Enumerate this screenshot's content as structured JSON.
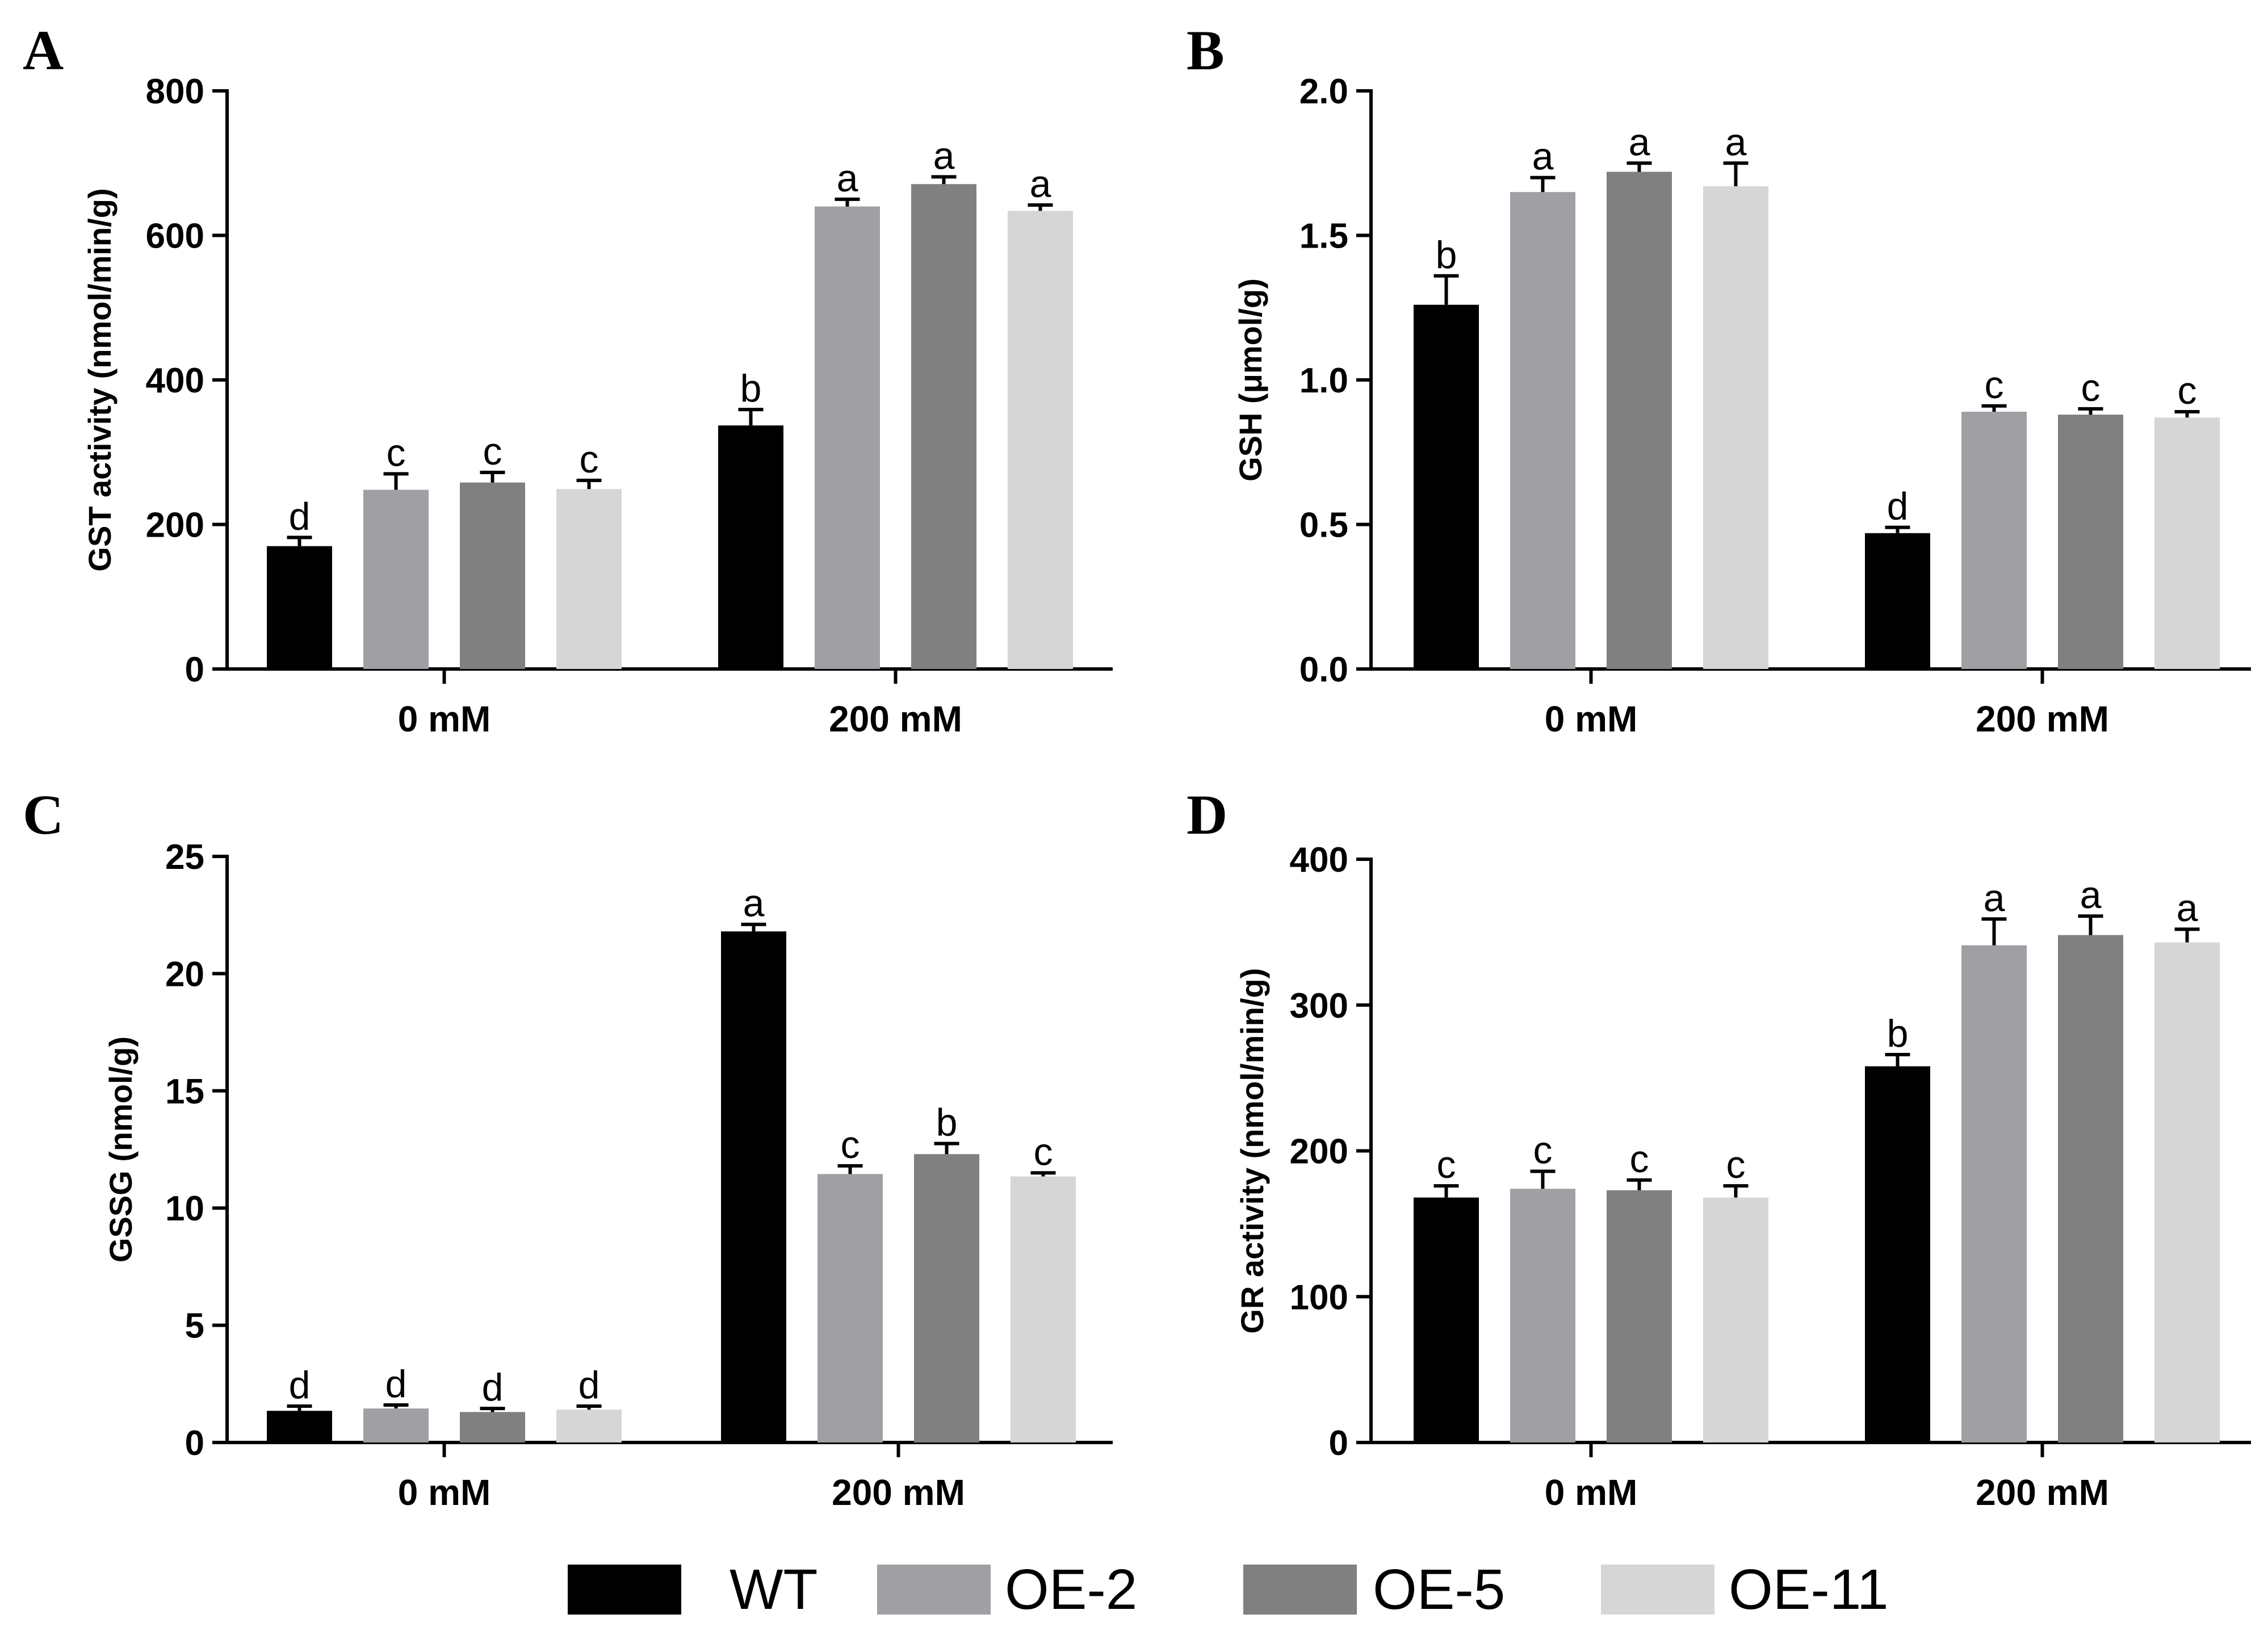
{
  "legend": {
    "series": [
      {
        "name": "WT",
        "color": "#000000"
      },
      {
        "name": "OE-2",
        "color": "#a0a0a4"
      },
      {
        "name": "OE-5",
        "color": "#808080"
      },
      {
        "name": "OE-11",
        "color": "#d6d6d6"
      }
    ]
  },
  "chart_data": [
    {
      "panel": "A",
      "type": "bar",
      "ylabel": "GST activity (nmol/min/g)",
      "categories": [
        "0 mM",
        "200 mM"
      ],
      "ylim": [
        0,
        800
      ],
      "yticks": [
        0,
        200,
        400,
        600,
        800
      ],
      "series": [
        {
          "name": "WT",
          "values": [
            170,
            337
          ],
          "errors": [
            12,
            22
          ],
          "letters": [
            "d",
            "b"
          ]
        },
        {
          "name": "OE-2",
          "values": [
            248,
            640
          ],
          "errors": [
            22,
            10
          ],
          "letters": [
            "c",
            "a"
          ]
        },
        {
          "name": "OE-5",
          "values": [
            258,
            671
          ],
          "errors": [
            14,
            10
          ],
          "letters": [
            "c",
            "a"
          ]
        },
        {
          "name": "OE-11",
          "values": [
            249,
            634
          ],
          "errors": [
            12,
            8
          ],
          "letters": [
            "c",
            "a"
          ]
        }
      ]
    },
    {
      "panel": "B",
      "type": "bar",
      "ylabel": "GSH (μmol/g)",
      "categories": [
        "0 mM",
        "200 mM"
      ],
      "ylim": [
        0,
        2.0
      ],
      "yticks": [
        "0.0",
        "0.5",
        "1.0",
        "1.5",
        "2.0"
      ],
      "series": [
        {
          "name": "WT",
          "values": [
            1.26,
            0.47
          ],
          "errors": [
            0.1,
            0.02
          ],
          "letters": [
            "b",
            "d"
          ]
        },
        {
          "name": "OE-2",
          "values": [
            1.65,
            0.89
          ],
          "errors": [
            0.05,
            0.02
          ],
          "letters": [
            "a",
            "c"
          ]
        },
        {
          "name": "OE-5",
          "values": [
            1.72,
            0.88
          ],
          "errors": [
            0.03,
            0.02
          ],
          "letters": [
            "a",
            "c"
          ]
        },
        {
          "name": "OE-11",
          "values": [
            1.67,
            0.87
          ],
          "errors": [
            0.08,
            0.02
          ],
          "letters": [
            "a",
            "c"
          ]
        }
      ]
    },
    {
      "panel": "C",
      "type": "bar",
      "ylabel": "GSSG (nmol/g)",
      "categories": [
        "0 mM",
        "200 mM"
      ],
      "ylim": [
        0,
        25
      ],
      "yticks": [
        0,
        5,
        10,
        15,
        20,
        25
      ],
      "series": [
        {
          "name": "WT",
          "values": [
            1.35,
            21.8
          ],
          "errors": [
            0.2,
            0.3
          ],
          "letters": [
            "d",
            "a"
          ]
        },
        {
          "name": "OE-2",
          "values": [
            1.45,
            11.45
          ],
          "errors": [
            0.15,
            0.35
          ],
          "letters": [
            "d",
            "c"
          ]
        },
        {
          "name": "OE-5",
          "values": [
            1.3,
            12.3
          ],
          "errors": [
            0.15,
            0.45
          ],
          "letters": [
            "d",
            "b"
          ]
        },
        {
          "name": "OE-11",
          "values": [
            1.4,
            11.35
          ],
          "errors": [
            0.15,
            0.15
          ],
          "letters": [
            "d",
            "c"
          ]
        }
      ]
    },
    {
      "panel": "D",
      "type": "bar",
      "ylabel": "GR activity (nmol/min/g)",
      "categories": [
        "0 mM",
        "200 mM"
      ],
      "ylim": [
        0,
        400
      ],
      "yticks": [
        0,
        100,
        200,
        300,
        400
      ],
      "series": [
        {
          "name": "WT",
          "values": [
            168,
            258
          ],
          "errors": [
            8,
            8
          ],
          "letters": [
            "c",
            "b"
          ]
        },
        {
          "name": "OE-2",
          "values": [
            174,
            341
          ],
          "errors": [
            12,
            18
          ],
          "letters": [
            "c",
            "a"
          ]
        },
        {
          "name": "OE-5",
          "values": [
            173,
            348
          ],
          "errors": [
            7,
            13
          ],
          "letters": [
            "c",
            "a"
          ]
        },
        {
          "name": "OE-11",
          "values": [
            168,
            343
          ],
          "errors": [
            8,
            9
          ],
          "letters": [
            "c",
            "a"
          ]
        }
      ]
    }
  ]
}
